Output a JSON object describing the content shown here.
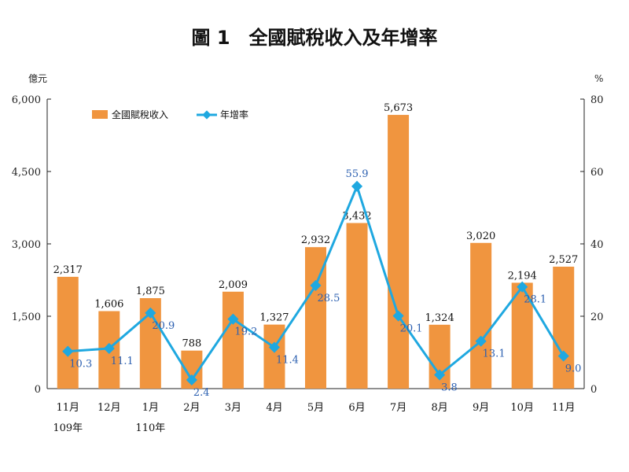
{
  "chart_data": {
    "type": "bar+line",
    "title": "圖 1　全國賦稅收入及年增率",
    "categories": [
      "11月",
      "12月",
      "1月",
      "2月",
      "3月",
      "4月",
      "5月",
      "6月",
      "7月",
      "8月",
      "9月",
      "10月",
      "11月"
    ],
    "category_sublabels": [
      "109年",
      "",
      "110年",
      "",
      "",
      "",
      "",
      "",
      "",
      "",
      "",
      "",
      ""
    ],
    "left_axis": {
      "unit": "億元",
      "ylim": [
        0,
        6000
      ],
      "ticks": [
        "0",
        "1,500",
        "3,000",
        "4,500",
        "6,000"
      ],
      "tick_values": [
        0,
        1500,
        3000,
        4500,
        6000
      ]
    },
    "right_axis": {
      "unit": "%",
      "ylim": [
        0,
        80
      ],
      "ticks": [
        "0",
        "20",
        "40",
        "60",
        "80"
      ],
      "tick_values": [
        0,
        20,
        40,
        60,
        80
      ]
    },
    "series": [
      {
        "name": "全國賦稅收入",
        "kind": "bar",
        "axis": "left",
        "color": "#f0953f",
        "values": [
          2317,
          1606,
          1875,
          788,
          2009,
          1327,
          2932,
          3432,
          5673,
          1324,
          3020,
          2194,
          2527
        ],
        "labels": [
          "2,317",
          "1,606",
          "1,875",
          "788",
          "2,009",
          "1,327",
          "2,932",
          "3,432",
          "5,673",
          "1,324",
          "3,020",
          "2,194",
          "2,527"
        ]
      },
      {
        "name": "年增率",
        "kind": "line",
        "axis": "right",
        "color": "#1fa8e0",
        "values": [
          10.3,
          11.1,
          20.9,
          2.4,
          19.2,
          11.4,
          28.5,
          55.9,
          20.1,
          3.8,
          13.1,
          28.1,
          9.0
        ],
        "labels": [
          "10.3",
          "11.1",
          "20.9",
          "2.4",
          "19.2",
          "11.4",
          "28.5",
          "55.9",
          "20.1",
          "3.8",
          "13.1",
          "28.1",
          "9.0"
        ]
      }
    ],
    "legend": "top-left",
    "grid": false
  }
}
